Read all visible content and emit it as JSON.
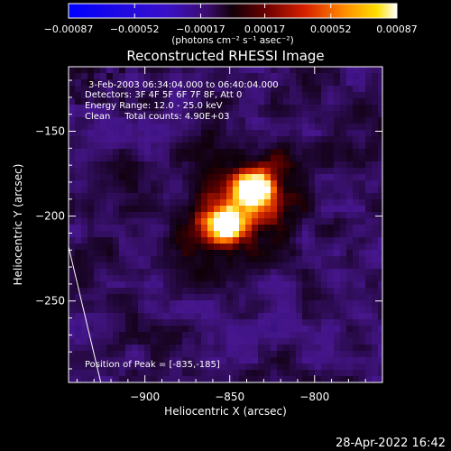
{
  "chart_data": {
    "type": "heatmap",
    "title": "Reconstructed RHESSI Image",
    "xlabel": "Heliocentric X (arcsec)",
    "ylabel": "Heliocentric Y (arcsec)",
    "xlim": [
      -945,
      -760
    ],
    "ylim": [
      -298,
      -112
    ],
    "xticks": [
      -900,
      -850,
      -800
    ],
    "xtick_labels": [
      "−900",
      "−850",
      "−800"
    ],
    "yticks": [
      -150,
      -200,
      -250
    ],
    "ytick_labels": [
      "−150",
      "−200",
      "−250"
    ],
    "colorbar": {
      "range": [
        -0.00087,
        0.00087
      ],
      "ticks": [
        -0.00087,
        -0.00052,
        -0.00017,
        0.00017,
        0.00052,
        0.00087
      ],
      "tick_labels": [
        "−0.00087",
        "−0.00052",
        "−0.00017",
        "0.00017",
        "0.00052",
        "0.00087"
      ],
      "unit_label": "(photons cm⁻² s⁻¹ asec⁻²)",
      "colormap": "blue-purple-red-yellow-white"
    },
    "annotations": [
      "3-Feb-2003 06:34:04.000 to 06:40:04.000",
      "Detectors: 3F 4F 5F 6F 7F 8F, Att 0",
      "Energy Range: 12.0 - 25.0 keV",
      "Clean     Total counts: 4.90E+03"
    ],
    "peak_label": "Position of Peak = [-835,-185]",
    "peak": [
      -835,
      -185
    ],
    "secondary_source": [
      -852,
      -205
    ],
    "limb_line": [
      [
        -945,
        -218
      ],
      [
        -926,
        -298
      ]
    ],
    "grid": false,
    "legend": "none"
  },
  "footer": {
    "timestamp": "28-Apr-2022 16:42"
  },
  "colors": {
    "background": "#000000",
    "foreground": "#ffffff",
    "peak": "#ffffff",
    "hot": "#ff7a00",
    "cool": "#4a1090"
  }
}
